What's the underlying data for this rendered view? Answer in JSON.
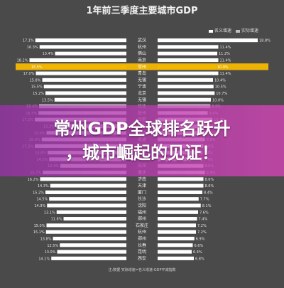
{
  "chart_data": {
    "type": "bar",
    "title": "1年前三季度主要城市GDP",
    "legend": [
      {
        "name": "名义增速",
        "color": "#ffffff"
      },
      {
        "name": "实际增速",
        "color": "#bfbfbf"
      }
    ],
    "categories": [
      "武汉",
      "杭州",
      "佛山",
      "南京",
      "常州",
      "青岛",
      "无锡",
      "宁波",
      "北京",
      "无锡",
      "长沙",
      "徐州",
      "合肥",
      "西安",
      "通州",
      "南通",
      "泉州",
      "东莞",
      "昆明",
      "苏州",
      "重庆",
      "济南",
      "天津",
      "厦门",
      "长沙",
      "沈阳",
      "福州",
      "郑州",
      "石家庄",
      "杭州",
      "郑州",
      "长春",
      "昆明",
      "西安"
    ],
    "left_values": [
      17.1,
      16.3,
      13.4,
      18.2,
      15.5,
      17.0,
      15.8,
      15.5,
      15.2,
      13.5,
      16.4,
      16.5,
      17.2,
      13.2,
      15.0,
      15.9,
      17.2,
      14.8,
      14.5,
      12.4,
      15.7,
      16.2,
      14.3,
      15.2,
      14.5,
      14.9,
      13.1,
      11.8,
      15.0,
      15.1,
      13.8,
      12.5,
      13.0,
      14.1
    ],
    "right_values": [
      18.8,
      11.4,
      11.2,
      11.4,
      10.9,
      11.4,
      10.4,
      10.5,
      10.7,
      10.0,
      9.9,
      9.4,
      10.3,
      9.8,
      9.1,
      8.9,
      8.6,
      8.4,
      8.4,
      8.6,
      8.9,
      8.6,
      8.6,
      8.4,
      7.7,
      8.1,
      7.6,
      7.4,
      7.2,
      7.2,
      6.9,
      6.6,
      6.4,
      6.8
    ],
    "highlight_index": 4,
    "highlight_color": "#f5b800",
    "left_bar_color": "#ffffff",
    "right_bar_color": "#ffffff",
    "xlim": [
      0,
      20
    ],
    "footnote": "注:数据 实际增速=名义增速-GDP平减指数"
  },
  "banner": {
    "line1": "常州GDP全球排名跃升",
    "line2": "，城市崛起的见证！"
  }
}
